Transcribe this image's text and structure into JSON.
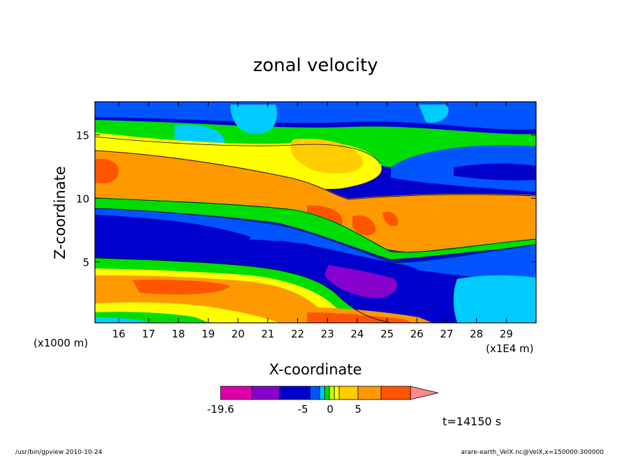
{
  "chart_data": {
    "type": "heatmap",
    "title": "zonal velocity",
    "xlabel": "X-coordinate",
    "ylabel": "Z-coordinate",
    "x_unit": "(x1E4 m)",
    "y_unit": "(x1000 m)",
    "xlim": [
      15.2,
      30.0
    ],
    "ylim": [
      0.2,
      17.6
    ],
    "x_ticks": [
      16,
      17,
      18,
      19,
      20,
      21,
      22,
      23,
      24,
      25,
      26,
      27,
      28,
      29
    ],
    "y_ticks": [
      5,
      10,
      15
    ],
    "colorbar": {
      "colors": [
        "#dd00aa",
        "#8800cc",
        "#0000cc",
        "#0055ff",
        "#00ccff",
        "#00dd00",
        "#ccff00",
        "#ffff00",
        "#ffcc00",
        "#ff9900",
        "#ff5500",
        "#ff0000",
        "#ff8888"
      ],
      "labels": [
        "-19.6",
        "-5",
        "0",
        "5"
      ]
    },
    "time_label": "t=14150 s"
  },
  "footer": {
    "left": "/usr/bin/gpview   2010-10-24",
    "right": "arare-earth_VelX.nc@VelX,x=150000:300000"
  }
}
